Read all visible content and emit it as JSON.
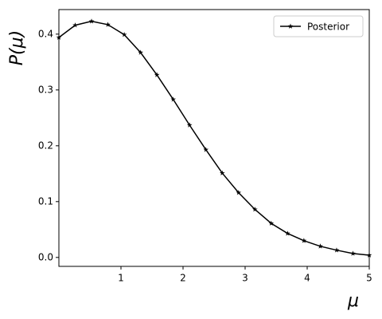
{
  "chart_data": {
    "type": "line",
    "x_label": "μ",
    "y_label": "P(μ)",
    "x": [
      0,
      0.263,
      0.526,
      0.789,
      1.053,
      1.316,
      1.579,
      1.842,
      2.105,
      2.368,
      2.632,
      2.895,
      3.158,
      3.421,
      3.684,
      3.947,
      4.211,
      4.474,
      4.737,
      5
    ],
    "series": [
      {
        "name": "Posterior",
        "color": "#000000",
        "values": [
          0.394,
          0.416,
          0.423,
          0.417,
          0.399,
          0.367,
          0.327,
          0.283,
          0.237,
          0.193,
          0.151,
          0.116,
          0.086,
          0.061,
          0.043,
          0.03,
          0.02,
          0.013,
          0.007,
          0.004
        ]
      }
    ],
    "xlim": [
      0,
      5
    ],
    "ylim": [
      -0.016,
      0.444
    ],
    "xticks": [
      1,
      2,
      3,
      4,
      5
    ],
    "yticks": [
      {
        "value": 0,
        "label": "0.0"
      },
      0.1,
      0.2,
      0.3,
      0.4
    ],
    "legend": "upper right",
    "marker": "star",
    "grid": false
  }
}
